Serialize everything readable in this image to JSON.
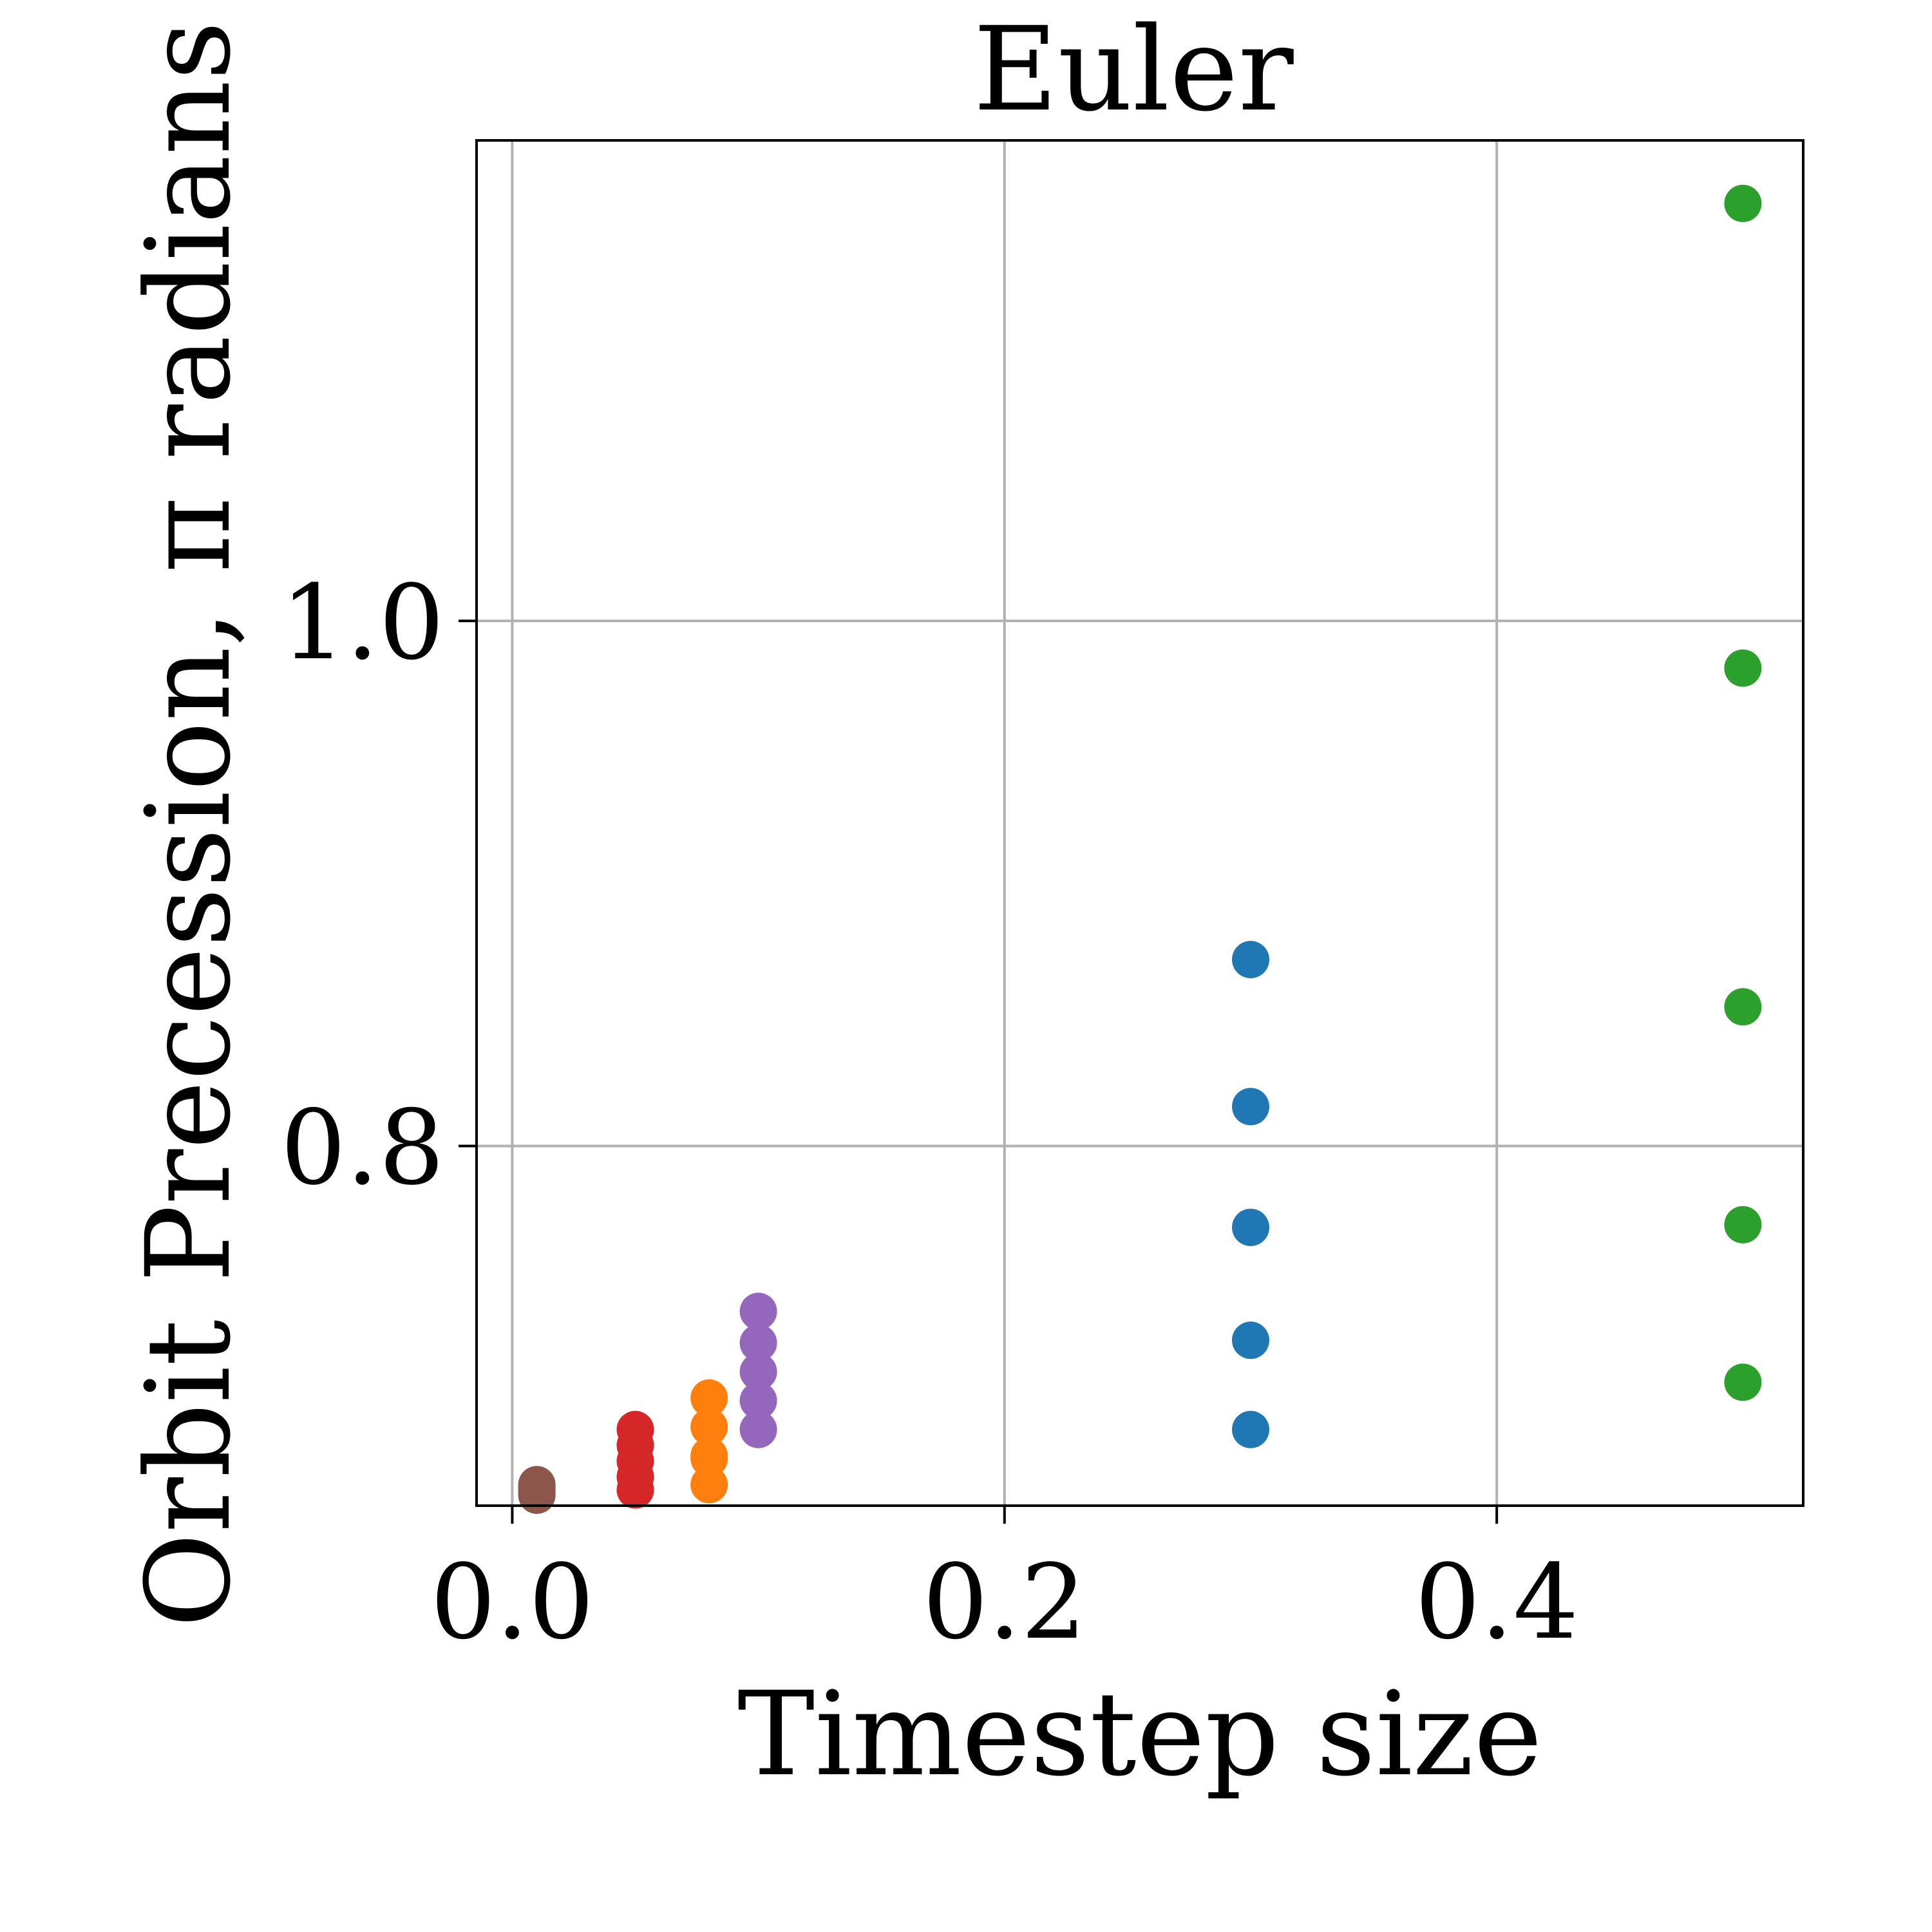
{
  "chart_data": {
    "type": "scatter",
    "title": "Euler",
    "xlabel": "Timestep size",
    "ylabel": "Orbit Precession, π radians",
    "xlim": [
      -0.0145,
      0.5245
    ],
    "ylim": [
      0.663,
      1.183
    ],
    "xticks": [
      0.0,
      0.2,
      0.4
    ],
    "xtick_labels": [
      "0.0",
      "0.2",
      "0.4"
    ],
    "yticks": [
      0.8,
      1.0
    ],
    "ytick_labels": [
      "0.8",
      "1.0"
    ],
    "grid": true,
    "legend": "none",
    "series": [
      {
        "color": "#1f77b4",
        "x": [
          0.3,
          0.3,
          0.3,
          0.3,
          0.3
        ],
        "y": [
          0.871,
          0.815,
          0.769,
          0.726,
          0.692
        ]
      },
      {
        "color": "#2ca02c",
        "x": [
          0.5,
          0.5,
          0.5,
          0.5,
          0.5
        ],
        "y": [
          1.159,
          0.982,
          0.853,
          0.77,
          0.71
        ]
      },
      {
        "color": "#ff7f0e",
        "x": [
          0.08,
          0.08,
          0.08,
          0.08,
          0.08
        ],
        "y": [
          0.704,
          0.693,
          0.682,
          0.671,
          0.681
        ]
      },
      {
        "color": "#9467bd",
        "x": [
          0.1,
          0.1,
          0.1,
          0.1,
          0.1
        ],
        "y": [
          0.737,
          0.725,
          0.714,
          0.703,
          0.692
        ]
      },
      {
        "color": "#d62728",
        "x": [
          0.05,
          0.05,
          0.05,
          0.05,
          0.05
        ],
        "y": [
          0.692,
          0.686,
          0.68,
          0.674,
          0.669
        ]
      },
      {
        "color": "#8c564b",
        "x": [
          0.01,
          0.01,
          0.01,
          0.01,
          0.01
        ],
        "y": [
          0.671,
          0.669,
          0.667,
          0.67,
          0.668
        ]
      }
    ]
  }
}
